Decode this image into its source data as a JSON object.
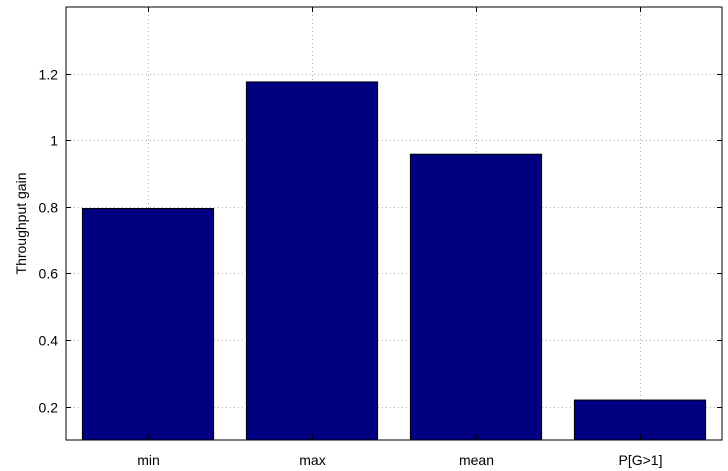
{
  "chart_data": {
    "type": "bar",
    "title": "",
    "xlabel": "",
    "ylabel": "Throughput gain",
    "categories": [
      "min",
      "max",
      "mean",
      "P[G>1]"
    ],
    "values": [
      0.795,
      1.175,
      0.958,
      0.22
    ],
    "ylim": [
      0.1,
      1.4
    ],
    "yticks": [
      0.2,
      0.4,
      0.6,
      0.8,
      1,
      1.2
    ],
    "ytick_labels": [
      "0.2",
      "0.4",
      "0.6",
      "0.8",
      "1",
      "1.2"
    ],
    "xlim": [
      0.5,
      4.5
    ],
    "bar_width": 0.8,
    "grid": true,
    "legend": "none",
    "bar_color": "#000080",
    "grid_color": "#b0b0b0",
    "axis_color": "#000000"
  }
}
